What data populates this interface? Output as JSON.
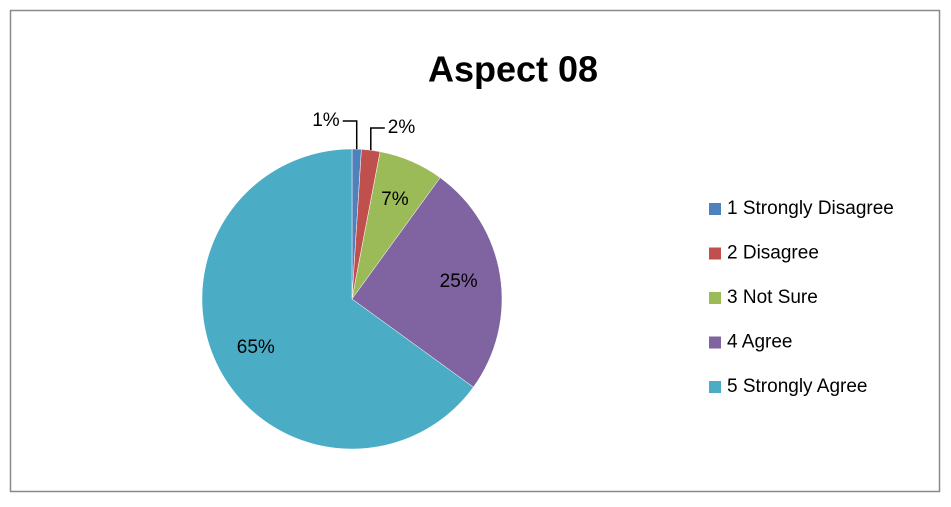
{
  "chart_data": {
    "type": "pie",
    "title": "Aspect 08",
    "categories": [
      "1 Strongly Disagree",
      "2 Disagree",
      "3 Not Sure",
      "4 Agree",
      "5 Strongly Agree"
    ],
    "values": [
      1,
      2,
      7,
      25,
      65
    ],
    "value_labels": [
      "1%",
      "2%",
      "7%",
      "25%",
      "65%"
    ],
    "colors": [
      "#4f81bd",
      "#c0504d",
      "#9bbb59",
      "#8064a2",
      "#4bacc6"
    ],
    "legend": "right"
  }
}
